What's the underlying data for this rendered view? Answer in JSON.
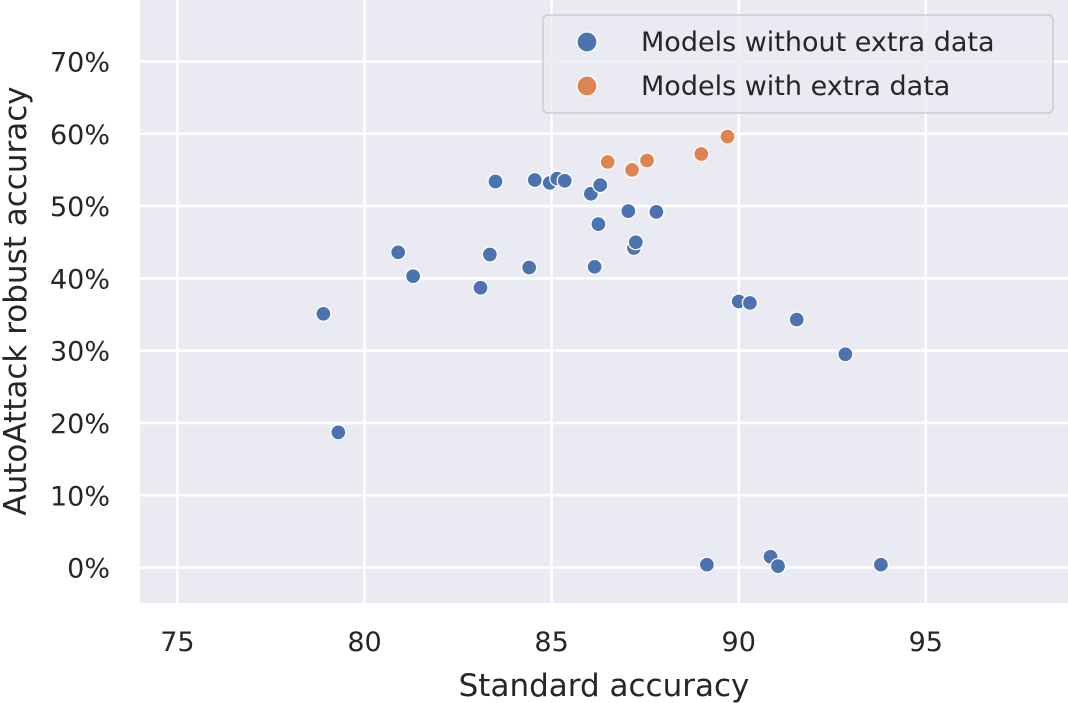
{
  "chart_data": {
    "type": "scatter",
    "title": "",
    "xlabel": "Standard accuracy",
    "ylabel": "AutoAttack robust accuracy",
    "xlim": [
      74,
      98.8
    ],
    "ylim": [
      -4.9,
      78.5
    ],
    "x_ticks": [
      75,
      80,
      85,
      90,
      95
    ],
    "x_tick_labels": [
      "75",
      "80",
      "85",
      "90",
      "95"
    ],
    "y_ticks": [
      0,
      10,
      20,
      30,
      40,
      50,
      60,
      70
    ],
    "y_tick_labels": [
      "0%",
      "10%",
      "20%",
      "30%",
      "40%",
      "50%",
      "60%",
      "70%"
    ],
    "grid": true,
    "legend_position": "top-right",
    "series": [
      {
        "name": "Models without extra data",
        "color": "#4c72b0",
        "points": [
          [
            78.9,
            35.1
          ],
          [
            79.3,
            18.7
          ],
          [
            80.9,
            43.6
          ],
          [
            81.3,
            40.3
          ],
          [
            83.1,
            38.7
          ],
          [
            83.35,
            43.3
          ],
          [
            83.5,
            53.4
          ],
          [
            84.4,
            41.5
          ],
          [
            84.55,
            53.6
          ],
          [
            84.95,
            53.2
          ],
          [
            85.15,
            53.8
          ],
          [
            85.35,
            53.5
          ],
          [
            86.05,
            51.7
          ],
          [
            86.15,
            41.6
          ],
          [
            86.25,
            47.5
          ],
          [
            86.3,
            52.9
          ],
          [
            87.05,
            49.3
          ],
          [
            87.2,
            44.2
          ],
          [
            87.25,
            45.0
          ],
          [
            87.8,
            49.2
          ],
          [
            89.15,
            0.4
          ],
          [
            90.0,
            36.8
          ],
          [
            90.3,
            36.6
          ],
          [
            90.85,
            1.5
          ],
          [
            91.05,
            0.2
          ],
          [
            91.55,
            34.3
          ],
          [
            92.85,
            29.5
          ],
          [
            93.8,
            0.4
          ]
        ]
      },
      {
        "name": "Models with extra data",
        "color": "#dd8452",
        "points": [
          [
            86.5,
            56.1
          ],
          [
            87.15,
            55.0
          ],
          [
            87.55,
            56.3
          ],
          [
            89.0,
            57.2
          ],
          [
            89.7,
            59.6
          ]
        ]
      }
    ]
  }
}
